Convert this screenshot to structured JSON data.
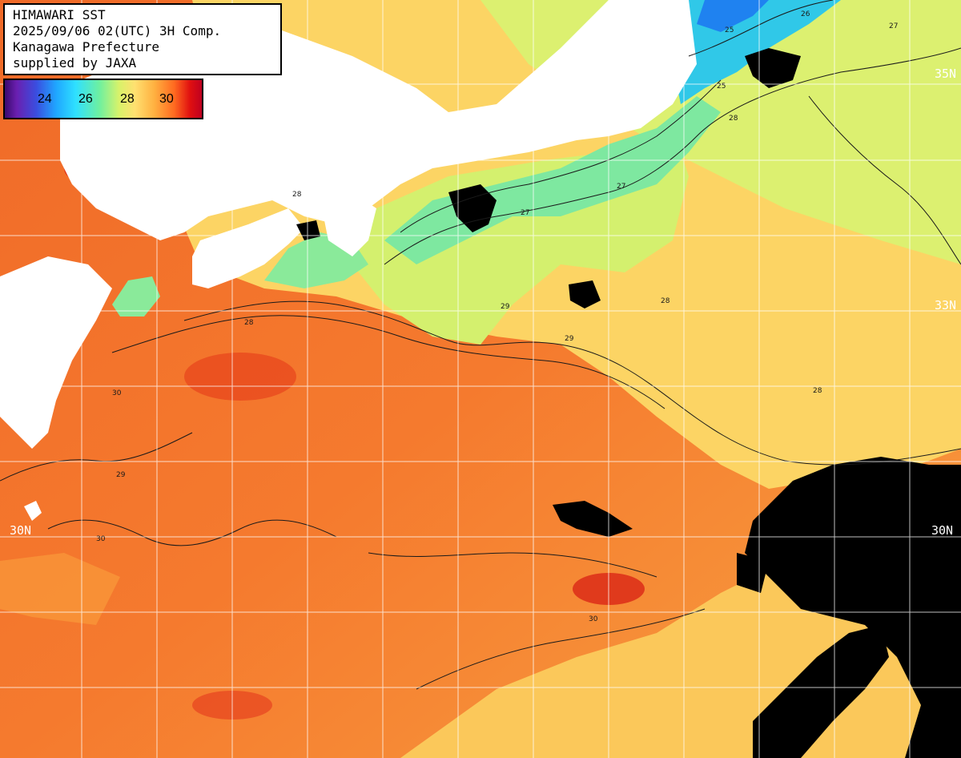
{
  "header": {
    "line1": "HIMAWARI SST",
    "line2": "2025/09/06 02(UTC) 3H Comp.",
    "line3": "Kanagawa Prefecture",
    "line4": "supplied by JAXA"
  },
  "legend": {
    "ticks": [
      "24",
      "26",
      "28",
      "30"
    ]
  },
  "lat_labels": {
    "n35": "35N",
    "n33": "33N",
    "n30_left": "30N",
    "n30_right": "30N"
  },
  "contour_labels": [
    "25",
    "25",
    "26",
    "27",
    "27",
    "27",
    "28",
    "28",
    "28",
    "28",
    "28",
    "29",
    "29",
    "29",
    "30",
    "30",
    "30"
  ],
  "colors": {
    "land": "#ffffff",
    "cloud": "#000000",
    "graticule": "#ffffff",
    "sst_30": "#f05a20",
    "sst_29": "#fa8c32",
    "sst_28": "#fcd060",
    "sst_27": "#d8f068",
    "sst_26": "#6ee896",
    "sst_25": "#28c8e8",
    "sst_24": "#1f78f0"
  }
}
